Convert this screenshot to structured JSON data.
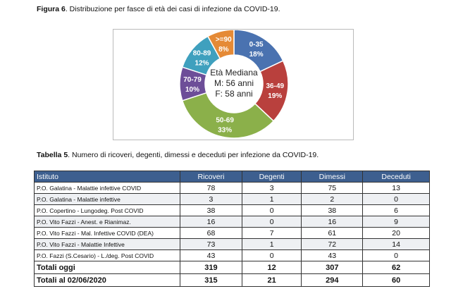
{
  "figure": {
    "label": "Figura 6",
    "caption": ". Distribuzione per fasce di età dei casi di infezione da COVID-19."
  },
  "chart_data": {
    "type": "pie",
    "donut": true,
    "categories": [
      "0-35",
      "36-49",
      "50-69",
      "70-79",
      "80-89",
      ">=90"
    ],
    "values": [
      18,
      19,
      33,
      10,
      12,
      8
    ],
    "labels": [
      "18%",
      "19%",
      "33%",
      "10%",
      "12%",
      "8%"
    ],
    "colors": [
      "#4a72b0",
      "#b9403d",
      "#8bb04a",
      "#6d4e98",
      "#3fa0be",
      "#e58a36"
    ],
    "center_text": [
      "Età Mediana",
      "M: 56 anni",
      "F: 58 anni"
    ]
  },
  "table": {
    "label": "Tabella 5",
    "caption": ". Numero di ricoveri, degenti, dimessi e deceduti per infezione da COVID-19.",
    "headers": [
      "Istituto",
      "Ricoveri",
      "Degenti",
      "Dimessi",
      "Deceduti"
    ],
    "rows": [
      [
        "P.O. Galatina - Malattie infettive COVID",
        "78",
        "3",
        "75",
        "13"
      ],
      [
        "P.O. Galatina - Malattie infettive",
        "3",
        "1",
        "2",
        "0"
      ],
      [
        "P.O. Copertino - Lungodeg. Post COVID",
        "38",
        "0",
        "38",
        "6"
      ],
      [
        "P.O. Vito Fazzi - Anest. e Rianimaz.",
        "16",
        "0",
        "16",
        "9"
      ],
      [
        "P.O. Vito Fazzi - Mal. Infettive COVID (DEA)",
        "68",
        "7",
        "61",
        "20"
      ],
      [
        "P.O. Vito Fazzi - Malattie Infettive",
        "73",
        "1",
        "72",
        "14"
      ],
      [
        "P.O. Fazzi (S.Cesario) - L./deg. Post COVID",
        "43",
        "0",
        "43",
        "0"
      ]
    ],
    "totals": [
      [
        "Totali oggi",
        "319",
        "12",
        "307",
        "62"
      ],
      [
        "Totali al 02/06/2020",
        "315",
        "21",
        "294",
        "60"
      ]
    ]
  }
}
